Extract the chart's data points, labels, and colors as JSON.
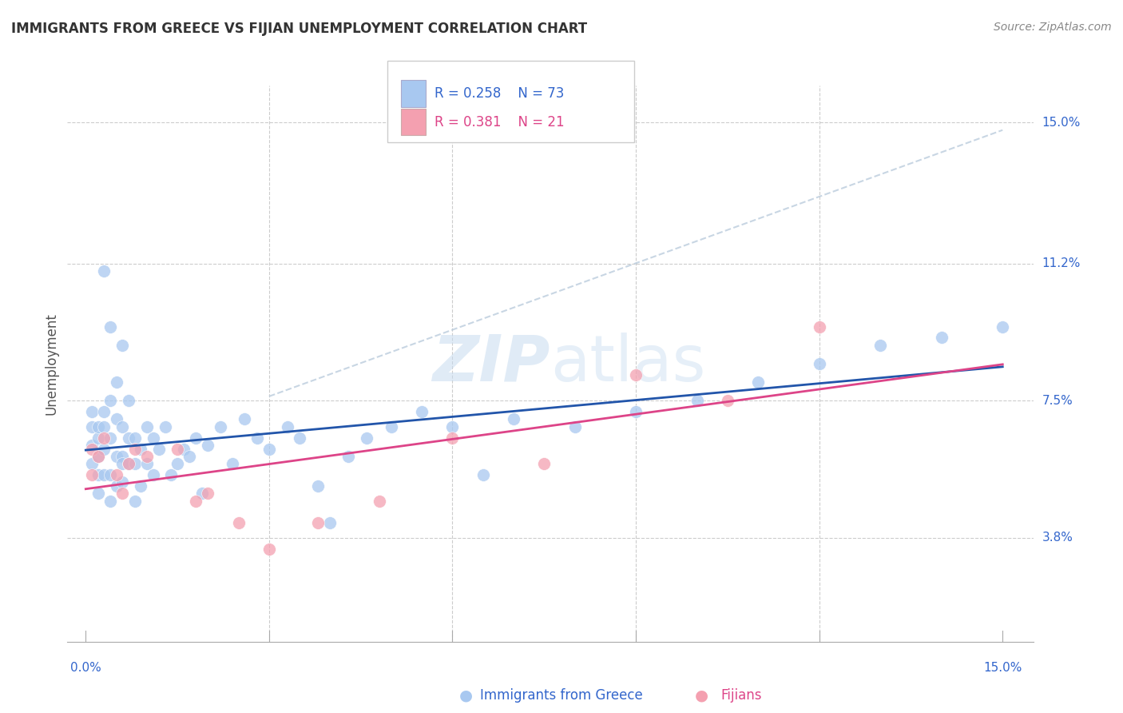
{
  "title": "IMMIGRANTS FROM GREECE VS FIJIAN UNEMPLOYMENT CORRELATION CHART",
  "source": "Source: ZipAtlas.com",
  "ylabel": "Unemployment",
  "color_blue": "#A8C8F0",
  "color_pink": "#F4A0B0",
  "color_blue_line": "#2255AA",
  "color_pink_line": "#DD4488",
  "color_dashed": "#AABBCC",
  "watermark_zip": "ZIP",
  "watermark_atlas": "atlas",
  "blue_x": [
    0.001,
    0.001,
    0.001,
    0.001,
    0.002,
    0.002,
    0.002,
    0.002,
    0.002,
    0.003,
    0.003,
    0.003,
    0.003,
    0.003,
    0.004,
    0.004,
    0.004,
    0.004,
    0.005,
    0.005,
    0.005,
    0.005,
    0.006,
    0.006,
    0.006,
    0.006,
    0.007,
    0.007,
    0.007,
    0.008,
    0.008,
    0.008,
    0.009,
    0.009,
    0.01,
    0.01,
    0.011,
    0.011,
    0.012,
    0.013,
    0.014,
    0.015,
    0.016,
    0.017,
    0.018,
    0.019,
    0.02,
    0.022,
    0.024,
    0.026,
    0.028,
    0.03,
    0.033,
    0.035,
    0.038,
    0.04,
    0.043,
    0.046,
    0.05,
    0.055,
    0.06,
    0.065,
    0.07,
    0.08,
    0.09,
    0.1,
    0.11,
    0.12,
    0.13,
    0.14,
    0.15,
    0.004,
    0.006
  ],
  "blue_y": [
    0.063,
    0.058,
    0.068,
    0.072,
    0.065,
    0.05,
    0.06,
    0.068,
    0.055,
    0.062,
    0.072,
    0.055,
    0.068,
    0.11,
    0.048,
    0.055,
    0.065,
    0.075,
    0.052,
    0.06,
    0.07,
    0.08,
    0.053,
    0.06,
    0.068,
    0.058,
    0.058,
    0.065,
    0.075,
    0.048,
    0.058,
    0.065,
    0.052,
    0.062,
    0.058,
    0.068,
    0.055,
    0.065,
    0.062,
    0.068,
    0.055,
    0.058,
    0.062,
    0.06,
    0.065,
    0.05,
    0.063,
    0.068,
    0.058,
    0.07,
    0.065,
    0.062,
    0.068,
    0.065,
    0.052,
    0.042,
    0.06,
    0.065,
    0.068,
    0.072,
    0.068,
    0.055,
    0.07,
    0.068,
    0.072,
    0.075,
    0.08,
    0.085,
    0.09,
    0.092,
    0.095,
    0.095,
    0.09
  ],
  "pink_x": [
    0.001,
    0.001,
    0.002,
    0.003,
    0.005,
    0.006,
    0.007,
    0.008,
    0.01,
    0.015,
    0.018,
    0.02,
    0.025,
    0.03,
    0.038,
    0.048,
    0.06,
    0.075,
    0.09,
    0.105,
    0.12
  ],
  "pink_y": [
    0.062,
    0.055,
    0.06,
    0.065,
    0.055,
    0.05,
    0.058,
    0.062,
    0.06,
    0.062,
    0.048,
    0.05,
    0.042,
    0.035,
    0.042,
    0.048,
    0.065,
    0.058,
    0.082,
    0.075,
    0.095
  ],
  "ytick_values": [
    0.038,
    0.075,
    0.112,
    0.15
  ],
  "ytick_labels": [
    "3.8%",
    "7.5%",
    "11.2%",
    "15.0%"
  ],
  "xtick_values": [
    0.03,
    0.06,
    0.09,
    0.12
  ],
  "xlim": [
    -0.003,
    0.155
  ],
  "ylim": [
    0.01,
    0.16
  ]
}
